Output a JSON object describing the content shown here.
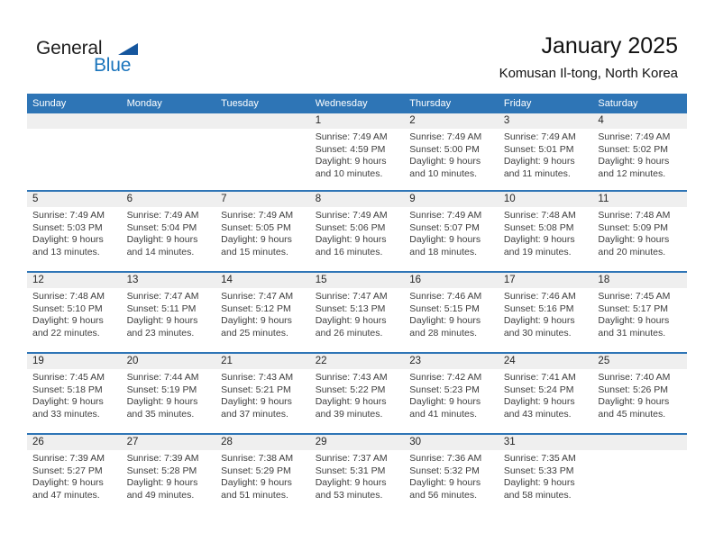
{
  "logo": {
    "word_top": "General",
    "word_bottom": "Blue"
  },
  "title": "January 2025",
  "location": "Komusan Il-tong, North Korea",
  "labels": {
    "sunrise": "Sunrise:",
    "sunset": "Sunset:",
    "daylight": "Daylight:"
  },
  "colors": {
    "header_blue": "#2E75B6",
    "stripe_gray": "#EFEFEF",
    "separator_blue": "#2E75B6",
    "logo_blue": "#1B75BC",
    "logo_triangle_blue": "#15569E"
  },
  "calendar": {
    "day_headers": [
      "Sunday",
      "Monday",
      "Tuesday",
      "Wednesday",
      "Thursday",
      "Friday",
      "Saturday"
    ],
    "weeks": [
      [
        null,
        null,
        null,
        {
          "date": "1",
          "sunrise": "7:49 AM",
          "sunset": "4:59 PM",
          "daylight": "9 hours and 10 minutes."
        },
        {
          "date": "2",
          "sunrise": "7:49 AM",
          "sunset": "5:00 PM",
          "daylight": "9 hours and 10 minutes."
        },
        {
          "date": "3",
          "sunrise": "7:49 AM",
          "sunset": "5:01 PM",
          "daylight": "9 hours and 11 minutes."
        },
        {
          "date": "4",
          "sunrise": "7:49 AM",
          "sunset": "5:02 PM",
          "daylight": "9 hours and 12 minutes."
        }
      ],
      [
        {
          "date": "5",
          "sunrise": "7:49 AM",
          "sunset": "5:03 PM",
          "daylight": "9 hours and 13 minutes."
        },
        {
          "date": "6",
          "sunrise": "7:49 AM",
          "sunset": "5:04 PM",
          "daylight": "9 hours and 14 minutes."
        },
        {
          "date": "7",
          "sunrise": "7:49 AM",
          "sunset": "5:05 PM",
          "daylight": "9 hours and 15 minutes."
        },
        {
          "date": "8",
          "sunrise": "7:49 AM",
          "sunset": "5:06 PM",
          "daylight": "9 hours and 16 minutes."
        },
        {
          "date": "9",
          "sunrise": "7:49 AM",
          "sunset": "5:07 PM",
          "daylight": "9 hours and 18 minutes."
        },
        {
          "date": "10",
          "sunrise": "7:48 AM",
          "sunset": "5:08 PM",
          "daylight": "9 hours and 19 minutes."
        },
        {
          "date": "11",
          "sunrise": "7:48 AM",
          "sunset": "5:09 PM",
          "daylight": "9 hours and 20 minutes."
        }
      ],
      [
        {
          "date": "12",
          "sunrise": "7:48 AM",
          "sunset": "5:10 PM",
          "daylight": "9 hours and 22 minutes."
        },
        {
          "date": "13",
          "sunrise": "7:47 AM",
          "sunset": "5:11 PM",
          "daylight": "9 hours and 23 minutes."
        },
        {
          "date": "14",
          "sunrise": "7:47 AM",
          "sunset": "5:12 PM",
          "daylight": "9 hours and 25 minutes."
        },
        {
          "date": "15",
          "sunrise": "7:47 AM",
          "sunset": "5:13 PM",
          "daylight": "9 hours and 26 minutes."
        },
        {
          "date": "16",
          "sunrise": "7:46 AM",
          "sunset": "5:15 PM",
          "daylight": "9 hours and 28 minutes."
        },
        {
          "date": "17",
          "sunrise": "7:46 AM",
          "sunset": "5:16 PM",
          "daylight": "9 hours and 30 minutes."
        },
        {
          "date": "18",
          "sunrise": "7:45 AM",
          "sunset": "5:17 PM",
          "daylight": "9 hours and 31 minutes."
        }
      ],
      [
        {
          "date": "19",
          "sunrise": "7:45 AM",
          "sunset": "5:18 PM",
          "daylight": "9 hours and 33 minutes."
        },
        {
          "date": "20",
          "sunrise": "7:44 AM",
          "sunset": "5:19 PM",
          "daylight": "9 hours and 35 minutes."
        },
        {
          "date": "21",
          "sunrise": "7:43 AM",
          "sunset": "5:21 PM",
          "daylight": "9 hours and 37 minutes."
        },
        {
          "date": "22",
          "sunrise": "7:43 AM",
          "sunset": "5:22 PM",
          "daylight": "9 hours and 39 minutes."
        },
        {
          "date": "23",
          "sunrise": "7:42 AM",
          "sunset": "5:23 PM",
          "daylight": "9 hours and 41 minutes."
        },
        {
          "date": "24",
          "sunrise": "7:41 AM",
          "sunset": "5:24 PM",
          "daylight": "9 hours and 43 minutes."
        },
        {
          "date": "25",
          "sunrise": "7:40 AM",
          "sunset": "5:26 PM",
          "daylight": "9 hours and 45 minutes."
        }
      ],
      [
        {
          "date": "26",
          "sunrise": "7:39 AM",
          "sunset": "5:27 PM",
          "daylight": "9 hours and 47 minutes."
        },
        {
          "date": "27",
          "sunrise": "7:39 AM",
          "sunset": "5:28 PM",
          "daylight": "9 hours and 49 minutes."
        },
        {
          "date": "28",
          "sunrise": "7:38 AM",
          "sunset": "5:29 PM",
          "daylight": "9 hours and 51 minutes."
        },
        {
          "date": "29",
          "sunrise": "7:37 AM",
          "sunset": "5:31 PM",
          "daylight": "9 hours and 53 minutes."
        },
        {
          "date": "30",
          "sunrise": "7:36 AM",
          "sunset": "5:32 PM",
          "daylight": "9 hours and 56 minutes."
        },
        {
          "date": "31",
          "sunrise": "7:35 AM",
          "sunset": "5:33 PM",
          "daylight": "9 hours and 58 minutes."
        },
        null
      ]
    ]
  }
}
